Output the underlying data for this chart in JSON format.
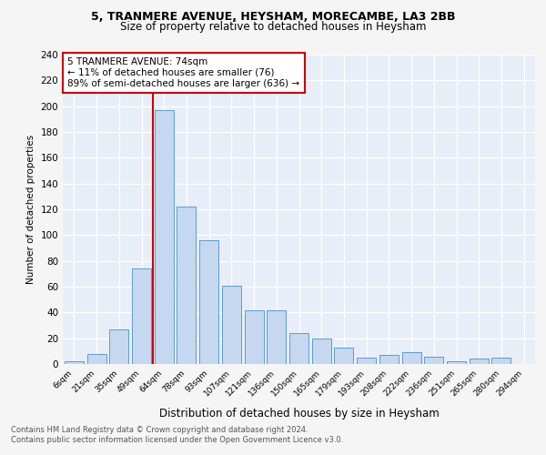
{
  "title": "5, TRANMERE AVENUE, HEYSHAM, MORECAMBE, LA3 2BB",
  "subtitle": "Size of property relative to detached houses in Heysham",
  "xlabel": "Distribution of detached houses by size in Heysham",
  "ylabel": "Number of detached properties",
  "bar_color": "#c5d8f0",
  "bar_edge_color": "#5b9bd5",
  "annotation_line_color": "#cc0000",
  "annotation_box_edge_color": "#cc0000",
  "annotation_text": "5 TRANMERE AVENUE: 74sqm\n← 11% of detached houses are smaller (76)\n89% of semi-detached houses are larger (636) →",
  "categories": [
    "6sqm",
    "21sqm",
    "35sqm",
    "49sqm",
    "64sqm",
    "78sqm",
    "93sqm",
    "107sqm",
    "121sqm",
    "136sqm",
    "150sqm",
    "165sqm",
    "179sqm",
    "193sqm",
    "208sqm",
    "222sqm",
    "236sqm",
    "251sqm",
    "265sqm",
    "280sqm",
    "294sqm"
  ],
  "values": [
    2,
    8,
    27,
    74,
    197,
    122,
    96,
    61,
    42,
    42,
    24,
    20,
    13,
    5,
    7,
    9,
    6,
    2,
    4,
    5,
    0
  ],
  "footer": "Contains HM Land Registry data © Crown copyright and database right 2024.\nContains public sector information licensed under the Open Government Licence v3.0.",
  "ylim": [
    0,
    240
  ],
  "yticks": [
    0,
    20,
    40,
    60,
    80,
    100,
    120,
    140,
    160,
    180,
    200,
    220,
    240
  ],
  "red_line_x": 3.5,
  "background_color": "#e8eef7",
  "grid_color": "#ffffff",
  "fig_bg_color": "#f5f5f5"
}
